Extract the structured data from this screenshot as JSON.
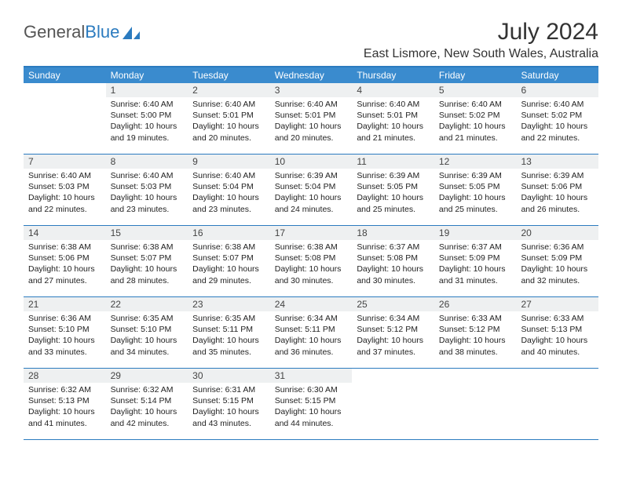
{
  "logo": {
    "text1": "General",
    "text2": "Blue"
  },
  "title": "July 2024",
  "location": "East Lismore, New South Wales, Australia",
  "header_bg": "#3a8bce",
  "rule_color": "#2b7bbf",
  "daynum_bg": "#eef0f1",
  "days": [
    "Sunday",
    "Monday",
    "Tuesday",
    "Wednesday",
    "Thursday",
    "Friday",
    "Saturday"
  ],
  "weeks": [
    [
      null,
      {
        "n": "1",
        "sr": "6:40 AM",
        "ss": "5:00 PM",
        "dl": "10 hours and 19 minutes."
      },
      {
        "n": "2",
        "sr": "6:40 AM",
        "ss": "5:01 PM",
        "dl": "10 hours and 20 minutes."
      },
      {
        "n": "3",
        "sr": "6:40 AM",
        "ss": "5:01 PM",
        "dl": "10 hours and 20 minutes."
      },
      {
        "n": "4",
        "sr": "6:40 AM",
        "ss": "5:01 PM",
        "dl": "10 hours and 21 minutes."
      },
      {
        "n": "5",
        "sr": "6:40 AM",
        "ss": "5:02 PM",
        "dl": "10 hours and 21 minutes."
      },
      {
        "n": "6",
        "sr": "6:40 AM",
        "ss": "5:02 PM",
        "dl": "10 hours and 22 minutes."
      }
    ],
    [
      {
        "n": "7",
        "sr": "6:40 AM",
        "ss": "5:03 PM",
        "dl": "10 hours and 22 minutes."
      },
      {
        "n": "8",
        "sr": "6:40 AM",
        "ss": "5:03 PM",
        "dl": "10 hours and 23 minutes."
      },
      {
        "n": "9",
        "sr": "6:40 AM",
        "ss": "5:04 PM",
        "dl": "10 hours and 23 minutes."
      },
      {
        "n": "10",
        "sr": "6:39 AM",
        "ss": "5:04 PM",
        "dl": "10 hours and 24 minutes."
      },
      {
        "n": "11",
        "sr": "6:39 AM",
        "ss": "5:05 PM",
        "dl": "10 hours and 25 minutes."
      },
      {
        "n": "12",
        "sr": "6:39 AM",
        "ss": "5:05 PM",
        "dl": "10 hours and 25 minutes."
      },
      {
        "n": "13",
        "sr": "6:39 AM",
        "ss": "5:06 PM",
        "dl": "10 hours and 26 minutes."
      }
    ],
    [
      {
        "n": "14",
        "sr": "6:38 AM",
        "ss": "5:06 PM",
        "dl": "10 hours and 27 minutes."
      },
      {
        "n": "15",
        "sr": "6:38 AM",
        "ss": "5:07 PM",
        "dl": "10 hours and 28 minutes."
      },
      {
        "n": "16",
        "sr": "6:38 AM",
        "ss": "5:07 PM",
        "dl": "10 hours and 29 minutes."
      },
      {
        "n": "17",
        "sr": "6:38 AM",
        "ss": "5:08 PM",
        "dl": "10 hours and 30 minutes."
      },
      {
        "n": "18",
        "sr": "6:37 AM",
        "ss": "5:08 PM",
        "dl": "10 hours and 30 minutes."
      },
      {
        "n": "19",
        "sr": "6:37 AM",
        "ss": "5:09 PM",
        "dl": "10 hours and 31 minutes."
      },
      {
        "n": "20",
        "sr": "6:36 AM",
        "ss": "5:09 PM",
        "dl": "10 hours and 32 minutes."
      }
    ],
    [
      {
        "n": "21",
        "sr": "6:36 AM",
        "ss": "5:10 PM",
        "dl": "10 hours and 33 minutes."
      },
      {
        "n": "22",
        "sr": "6:35 AM",
        "ss": "5:10 PM",
        "dl": "10 hours and 34 minutes."
      },
      {
        "n": "23",
        "sr": "6:35 AM",
        "ss": "5:11 PM",
        "dl": "10 hours and 35 minutes."
      },
      {
        "n": "24",
        "sr": "6:34 AM",
        "ss": "5:11 PM",
        "dl": "10 hours and 36 minutes."
      },
      {
        "n": "25",
        "sr": "6:34 AM",
        "ss": "5:12 PM",
        "dl": "10 hours and 37 minutes."
      },
      {
        "n": "26",
        "sr": "6:33 AM",
        "ss": "5:12 PM",
        "dl": "10 hours and 38 minutes."
      },
      {
        "n": "27",
        "sr": "6:33 AM",
        "ss": "5:13 PM",
        "dl": "10 hours and 40 minutes."
      }
    ],
    [
      {
        "n": "28",
        "sr": "6:32 AM",
        "ss": "5:13 PM",
        "dl": "10 hours and 41 minutes."
      },
      {
        "n": "29",
        "sr": "6:32 AM",
        "ss": "5:14 PM",
        "dl": "10 hours and 42 minutes."
      },
      {
        "n": "30",
        "sr": "6:31 AM",
        "ss": "5:15 PM",
        "dl": "10 hours and 43 minutes."
      },
      {
        "n": "31",
        "sr": "6:30 AM",
        "ss": "5:15 PM",
        "dl": "10 hours and 44 minutes."
      },
      null,
      null,
      null
    ]
  ],
  "labels": {
    "sunrise": "Sunrise:",
    "sunset": "Sunset:",
    "daylight": "Daylight:"
  }
}
